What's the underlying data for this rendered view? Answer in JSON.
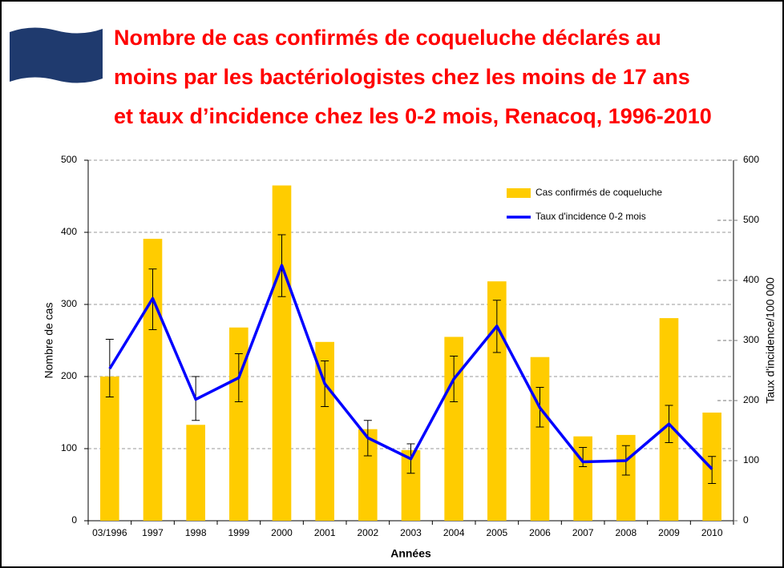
{
  "chart_data": {
    "type": "bar",
    "title_lines": [
      "Nombre de cas confirmés de coqueluche déclarés au",
      "moins par les bactériologistes chez les moins de 17 ans",
      "et taux d’incidence chez les 0-2 mois, Renacoq, 1996-2010"
    ],
    "x_label": "Années",
    "y_label": "Nombre de cas",
    "y2_label": "Taux d'incidence/100 000",
    "categories": [
      "03/1996",
      "1997",
      "1998",
      "1999",
      "2000",
      "2001",
      "2002",
      "2003",
      "2004",
      "2005",
      "2006",
      "2007",
      "2008",
      "2009",
      "2010"
    ],
    "series": [
      {
        "name": "Cas confirmés de coqueluche",
        "type": "bar",
        "color": "#ffcc00",
        "values": [
          200,
          391,
          133,
          268,
          465,
          248,
          127,
          98,
          255,
          332,
          227,
          117,
          119,
          281,
          150
        ]
      },
      {
        "name": "Taux d'incidence 0-2 mois",
        "type": "line",
        "axis": "y2",
        "color": "#0000ff",
        "values": [
          253,
          370,
          202,
          238,
          425,
          228,
          138,
          103,
          236,
          324,
          188,
          98,
          100,
          161,
          86
        ],
        "upper": [
          302,
          419,
          240,
          278,
          476,
          266,
          167,
          128,
          274,
          367,
          222,
          122,
          125,
          192,
          107
        ],
        "lower": [
          206,
          318,
          167,
          198,
          373,
          190,
          108,
          79,
          198,
          280,
          156,
          90,
          76,
          130,
          62
        ]
      }
    ],
    "ylim": [
      0,
      500
    ],
    "yticks": [
      0,
      100,
      200,
      300,
      400,
      500
    ],
    "y2lim": [
      0,
      600
    ],
    "y2ticks": [
      0,
      100,
      200,
      300,
      400,
      500,
      600
    ],
    "grid": true,
    "legend": "upper right"
  }
}
